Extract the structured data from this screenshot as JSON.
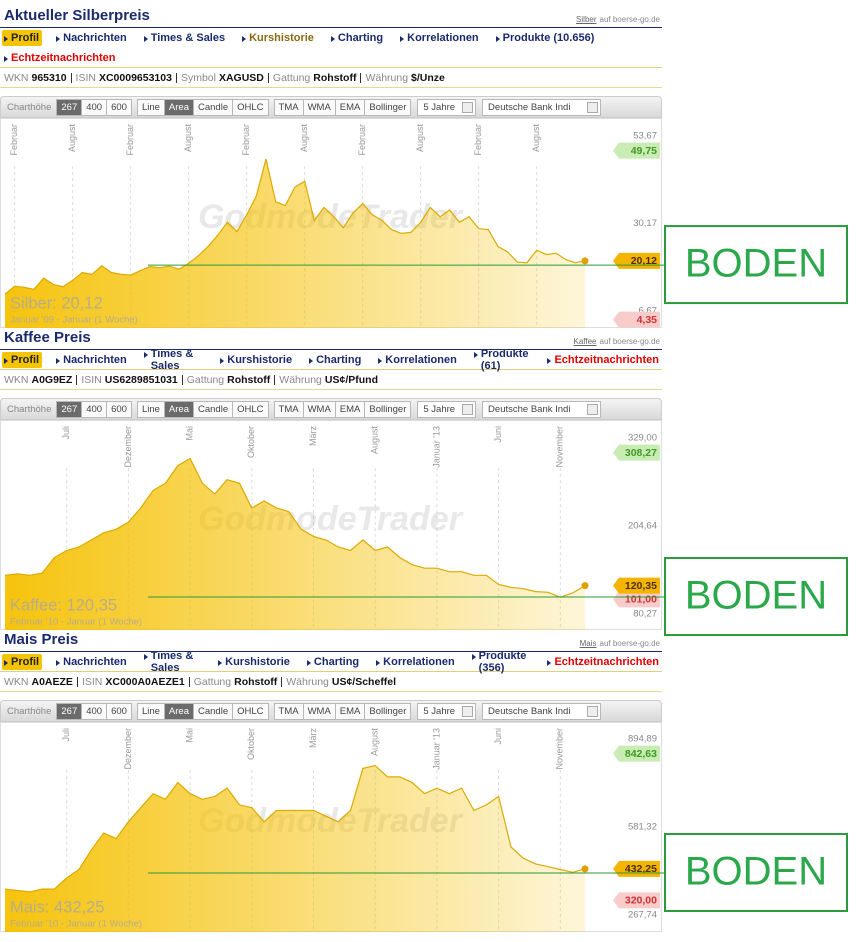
{
  "toolbar": {
    "height_label": "Charthöhe",
    "heights": [
      "267",
      "400",
      "600"
    ],
    "active_height": 0,
    "types": [
      "Line",
      "Area",
      "Candle",
      "OHLC"
    ],
    "active_type": 1,
    "indicators": [
      "TMA",
      "WMA",
      "EMA",
      "Bollinger"
    ],
    "period": "5 Jahre",
    "compare": "Deutsche Bank Indi"
  },
  "panels": [
    {
      "title": "Aktueller Silberpreis",
      "source": {
        "link": "Silber",
        "text": "auf boerse-go.de"
      },
      "nav": [
        [
          {
            "label": "Profil",
            "active": true
          },
          {
            "label": "Nachrichten"
          },
          {
            "label": "Times & Sales"
          },
          {
            "label": "Kurshistorie",
            "color": "#8b6a14"
          },
          {
            "label": "Charting"
          },
          {
            "label": "Korrelationen"
          },
          {
            "label": "Produkte (10.656)"
          }
        ],
        [
          {
            "label": "Echtzeitnachrichten",
            "color": "#e00000"
          }
        ]
      ],
      "info": [
        {
          "key": "WKN",
          "value": "965310"
        },
        {
          "key": "ISIN",
          "value": "XC0009653103"
        },
        {
          "key": "Symbol",
          "value": "XAGUSD"
        },
        {
          "key": "Gattung",
          "value": "Rohstoff"
        },
        {
          "key": "Währung",
          "value": "$/Unze"
        }
      ]
    },
    {
      "title": "Kaffee Preis",
      "source": {
        "link": "Kaffee",
        "text": "auf boerse-go.de"
      },
      "nav": [
        [
          {
            "label": "Profil",
            "active": true
          },
          {
            "label": "Nachrichten"
          },
          {
            "label": "Times & Sales"
          },
          {
            "label": "Kurshistorie"
          },
          {
            "label": "Charting"
          },
          {
            "label": "Korrelationen"
          },
          {
            "label": "Produkte (61)"
          },
          {
            "label": "Echtzeitnachrichten",
            "color": "#e00000"
          }
        ]
      ],
      "info": [
        {
          "key": "WKN",
          "value": "A0G9EZ"
        },
        {
          "key": "ISIN",
          "value": "US6289851031"
        },
        {
          "key": "Gattung",
          "value": "Rohstoff"
        },
        {
          "key": "Währung",
          "value": "US¢/Pfund"
        }
      ]
    },
    {
      "title": "Mais Preis",
      "source": {
        "link": "Mais",
        "text": "auf boerse-go.de"
      },
      "nav": [
        [
          {
            "label": "Profil",
            "active": true
          },
          {
            "label": "Nachrichten"
          },
          {
            "label": "Times & Sales"
          },
          {
            "label": "Kurshistorie"
          },
          {
            "label": "Charting"
          },
          {
            "label": "Korrelationen"
          },
          {
            "label": "Produkte (356)"
          },
          {
            "label": "Echtzeitnachrichten",
            "color": "#e00000"
          }
        ]
      ],
      "info": [
        {
          "key": "WKN",
          "value": "A0AEZE"
        },
        {
          "key": "ISIN",
          "value": "XC000A0AEZE1"
        },
        {
          "key": "Gattung",
          "value": "Rohstoff"
        },
        {
          "key": "Währung",
          "value": "US¢/Scheffel"
        }
      ]
    }
  ],
  "chart_data": [
    {
      "type": "area",
      "name_label": "Silber: 20,12",
      "range_label": "Januar '09 - Januar (1 Woche)",
      "watermark": "GodmodeTrader",
      "color": "#f5c000",
      "line_color": "#dcaa00",
      "categories": [
        null,
        "Februar",
        null,
        null,
        null,
        null,
        null,
        "August",
        null,
        null,
        null,
        null,
        null,
        "Februar",
        null,
        null,
        null,
        null,
        null,
        "August",
        null,
        null,
        null,
        null,
        null,
        "Februar",
        null,
        null,
        null,
        null,
        null,
        "August",
        null,
        null,
        null,
        null,
        null,
        "Februar",
        null,
        null,
        null,
        null,
        null,
        "August",
        null,
        null,
        null,
        null,
        null,
        "Februar",
        null,
        null,
        null,
        null,
        null,
        "August",
        null,
        null,
        null,
        null,
        null
      ],
      "values": [
        11.2,
        13.3,
        13.0,
        12.5,
        15.5,
        13.8,
        13.2,
        14.9,
        17.0,
        16.5,
        18.8,
        17.0,
        16.5,
        16.3,
        17.5,
        18.6,
        18.3,
        18.7,
        17.9,
        19.5,
        21.5,
        24.0,
        27.0,
        30.5,
        28.0,
        32.5,
        37.5,
        47.5,
        36.0,
        35.0,
        40.0,
        41.5,
        31.0,
        34.5,
        32.0,
        29.0,
        33.0,
        35.5,
        32.5,
        31.0,
        28.5,
        27.5,
        27.8,
        30.5,
        34.5,
        32.0,
        33.8,
        30.5,
        32.0,
        28.8,
        28.5,
        24.0,
        22.5,
        19.8,
        19.6,
        23.0,
        21.8,
        22.2,
        20.5,
        19.6,
        20.12
      ],
      "ylim": [
        2.1,
        58.5
      ],
      "yticks": [
        {
          "value": 53.67,
          "label": "53,67"
        },
        {
          "value": 30.17,
          "label": "30,17"
        },
        {
          "value": 6.67,
          "label": "6,67"
        }
      ],
      "markers": [
        {
          "value": 49.75,
          "label": "49,75",
          "fill": "#c8ecb4",
          "text_color": "#3f9a22"
        },
        {
          "value": 20.12,
          "label": "20,12",
          "fill": "#f5b400",
          "text_color": "#4a3000"
        },
        {
          "value": 4.35,
          "label": "4,35",
          "fill": "#f9cccc",
          "text_color": "#d03030"
        }
      ],
      "support": {
        "value": 19.0,
        "label": "BODEN",
        "color": "#2a9a3a"
      }
    },
    {
      "type": "area",
      "name_label": "Kaffee: 120,35",
      "range_label": "Februar '10 - Januar (1 Woche)",
      "watermark": "GodmodeTrader",
      "color": "#f5c000",
      "line_color": "#dcaa00",
      "categories": [
        null,
        null,
        null,
        null,
        null,
        "Juli",
        null,
        null,
        null,
        null,
        "Dezember",
        null,
        null,
        null,
        null,
        "Mai",
        null,
        null,
        null,
        null,
        "Oktober",
        null,
        null,
        null,
        null,
        "März",
        null,
        null,
        null,
        null,
        "August",
        null,
        null,
        null,
        null,
        "Januar '13",
        null,
        null,
        null,
        null,
        "Juni",
        null,
        null,
        null,
        null,
        "November",
        null,
        null
      ],
      "values": [
        135,
        137,
        135,
        138,
        160,
        170,
        175,
        185,
        195,
        200,
        210,
        230,
        255,
        265,
        290,
        300,
        265,
        250,
        270,
        265,
        230,
        240,
        230,
        225,
        200,
        190,
        185,
        175,
        170,
        185,
        170,
        175,
        160,
        150,
        145,
        145,
        140,
        140,
        135,
        135,
        122,
        118,
        116,
        112,
        111,
        104,
        110,
        120.35
      ],
      "ylim": [
        57.7,
        354.4
      ],
      "yticks": [
        {
          "value": 329,
          "label": "329,00"
        },
        {
          "value": 204.64,
          "label": "204,64"
        },
        {
          "value": 80.27,
          "label": "80,27"
        }
      ],
      "markers": [
        {
          "value": 308.27,
          "label": "308,27",
          "fill": "#c8ecb4",
          "text_color": "#3f9a22"
        },
        {
          "value": 101,
          "label": "101,00",
          "fill": "#f9cccc",
          "text_color": "#d03030"
        },
        {
          "value": 120.35,
          "label": "120,35",
          "fill": "#f5b400",
          "text_color": "#4a3000"
        }
      ],
      "support": {
        "value": 104.3,
        "label": "BODEN",
        "color": "#2a9a3a"
      }
    },
    {
      "type": "area",
      "name_label": "Mais: 432,25",
      "range_label": "Februar '10 - Januar (1 Woche)",
      "watermark": "GodmodeTrader",
      "color": "#f5c000",
      "line_color": "#dcaa00",
      "categories": [
        null,
        null,
        null,
        null,
        null,
        "Juli",
        null,
        null,
        null,
        null,
        "Dezember",
        null,
        null,
        null,
        null,
        "Mai",
        null,
        null,
        null,
        null,
        "Oktober",
        null,
        null,
        null,
        null,
        "März",
        null,
        null,
        null,
        null,
        "August",
        null,
        null,
        null,
        null,
        "Januar '13",
        null,
        null,
        null,
        null,
        "Juni",
        null,
        null,
        null,
        null,
        "November",
        null,
        null
      ],
      "values": [
        360,
        355,
        350,
        360,
        360,
        400,
        430,
        500,
        560,
        540,
        600,
        650,
        700,
        680,
        740,
        700,
        680,
        690,
        720,
        660,
        650,
        600,
        640,
        640,
        640,
        640,
        620,
        600,
        640,
        790,
        800,
        760,
        760,
        740,
        700,
        720,
        700,
        720,
        640,
        660,
        690,
        510,
        470,
        450,
        440,
        430,
        420,
        432.25
      ],
      "ylim": [
        207.2,
        955.5
      ],
      "yticks": [
        {
          "value": 894.89,
          "label": "894,89"
        },
        {
          "value": 581.32,
          "label": "581,32"
        },
        {
          "value": 267.74,
          "label": "267,74"
        }
      ],
      "markers": [
        {
          "value": 842.63,
          "label": "842,63",
          "fill": "#c8ecb4",
          "text_color": "#3f9a22"
        },
        {
          "value": 432.25,
          "label": "432,25",
          "fill": "#f5b400",
          "text_color": "#4a3000"
        },
        {
          "value": 320,
          "label": "320,00",
          "fill": "#f9cccc",
          "text_color": "#d03030"
        }
      ],
      "support": {
        "value": 417.5,
        "label": "BODEN",
        "color": "#2a9a3a"
      }
    }
  ]
}
